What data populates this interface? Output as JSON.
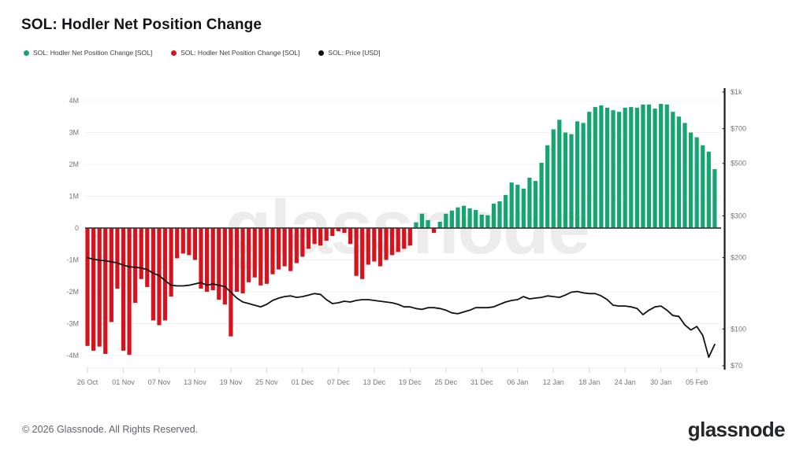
{
  "page": {
    "title": "SOL: Hodler Net Position Change",
    "footer_copyright": "© 2026 Glassnode. All Rights Reserved.",
    "footer_logo": "glassnode",
    "watermark": "glassnode"
  },
  "colors": {
    "positive_bar": "#15a571",
    "negative_bar": "#d8121c",
    "price_line": "#121212",
    "grid": "#f0f0f0",
    "zero_line": "#3d3d3d",
    "axis_text": "#757575",
    "right_axis_line": "#1a1a1a",
    "watermark": "#ececec"
  },
  "legend": [
    {
      "label": "SOL: Hodler Net Position Change [SOL]",
      "color": "#15a571"
    },
    {
      "label": "SOL: Hodler Net Position Change [SOL]",
      "color": "#d8121c"
    },
    {
      "label": "SOL: Price [USD]",
      "color": "#111111"
    }
  ],
  "chart_data": {
    "type": "bar",
    "title": "SOL: Hodler Net Position Change",
    "x_start_label": "26 Oct",
    "x_end_label": "05 Feb",
    "x_tick_labels": [
      "26 Oct",
      "01 Nov",
      "07 Nov",
      "13 Nov",
      "19 Nov",
      "25 Nov",
      "01 Dec",
      "07 Dec",
      "13 Dec",
      "19 Dec",
      "25 Dec",
      "31 Dec",
      "06 Jan",
      "12 Jan",
      "18 Jan",
      "24 Jan",
      "30 Jan",
      "05 Feb"
    ],
    "x_tick_every": 6,
    "left_axis": {
      "title": "Net Position Change [SOL]",
      "ticks": [
        "4M",
        "3M",
        "2M",
        "1M",
        "0",
        "-1M",
        "-2M",
        "-3M",
        "-4M"
      ],
      "values": [
        4,
        3,
        2,
        1,
        0,
        -1,
        -2,
        -3,
        -4
      ],
      "unit": "M",
      "ylim": [
        -4.6,
        4.6
      ],
      "scale": "linear"
    },
    "right_axis": {
      "title": "Price [USD]",
      "ticks": [
        "$1k",
        "$700",
        "$500",
        "$300",
        "$200",
        "$100",
        "$70"
      ],
      "values": [
        1000,
        700,
        500,
        300,
        200,
        100,
        70
      ],
      "ylim": [
        70,
        1000
      ],
      "scale": "log"
    },
    "grid": true,
    "legend_position": "top-left",
    "series": [
      {
        "name": "SOL: Hodler Net Position Change [SOL]",
        "type": "bar",
        "axis": "left",
        "unit": "M SOL",
        "positive_color": "#15a571",
        "negative_color": "#d8121c",
        "values": [
          -3.7,
          -3.85,
          -3.72,
          -3.95,
          -2.95,
          -1.9,
          -3.85,
          -3.98,
          -2.35,
          -1.6,
          -1.85,
          -2.9,
          -3.05,
          -2.9,
          -2.15,
          -0.95,
          -0.8,
          -0.85,
          -1.0,
          -1.9,
          -2.0,
          -1.95,
          -2.25,
          -2.4,
          -3.4,
          -2.0,
          -2.05,
          -1.7,
          -1.55,
          -1.8,
          -1.75,
          -1.45,
          -1.3,
          -1.2,
          -1.35,
          -1.1,
          -0.9,
          -0.65,
          -0.5,
          -0.55,
          -0.4,
          -0.25,
          -0.1,
          -0.15,
          -0.5,
          -1.5,
          -1.6,
          -1.15,
          -1.05,
          -1.2,
          -1.0,
          -0.85,
          -0.75,
          -0.65,
          -0.55,
          0.18,
          0.45,
          0.25,
          -0.15,
          0.2,
          0.45,
          0.55,
          0.65,
          0.7,
          0.62,
          0.57,
          0.42,
          0.4,
          0.77,
          0.84,
          1.04,
          1.43,
          1.36,
          1.24,
          1.58,
          1.48,
          2.05,
          2.6,
          3.1,
          3.4,
          3.0,
          2.95,
          3.35,
          3.3,
          3.65,
          3.8,
          3.85,
          3.78,
          3.7,
          3.65,
          3.78,
          3.8,
          3.78,
          3.88,
          3.88,
          3.75,
          3.9,
          3.88,
          3.65,
          3.5,
          3.3,
          3.0,
          2.85,
          2.6,
          2.4,
          1.85
        ]
      },
      {
        "name": "SOL: Price [USD]",
        "type": "line",
        "axis": "right",
        "unit": "USD",
        "color": "#121212",
        "values": [
          200,
          197,
          195,
          194,
          192,
          190,
          186,
          183,
          182,
          181,
          178,
          172,
          168,
          160,
          153,
          152,
          152,
          153,
          155,
          157,
          153,
          155,
          153,
          151,
          143,
          135,
          130,
          128,
          126,
          124,
          127,
          132,
          135,
          137,
          138,
          136,
          137,
          139,
          141,
          140,
          133,
          128,
          129,
          131,
          130,
          132,
          133,
          133,
          132,
          131,
          130,
          129,
          127,
          124,
          124,
          122,
          121,
          123,
          123,
          122,
          120,
          117,
          116,
          118,
          120,
          123,
          123,
          123,
          124,
          127,
          130,
          132,
          133,
          137,
          134,
          135,
          136,
          138,
          137,
          136,
          139,
          143,
          144,
          142,
          141,
          141,
          138,
          133,
          126,
          125,
          125,
          124,
          122,
          115,
          120,
          124,
          125,
          120,
          114,
          113,
          104,
          99,
          102.5,
          94,
          76,
          86
        ]
      }
    ]
  }
}
